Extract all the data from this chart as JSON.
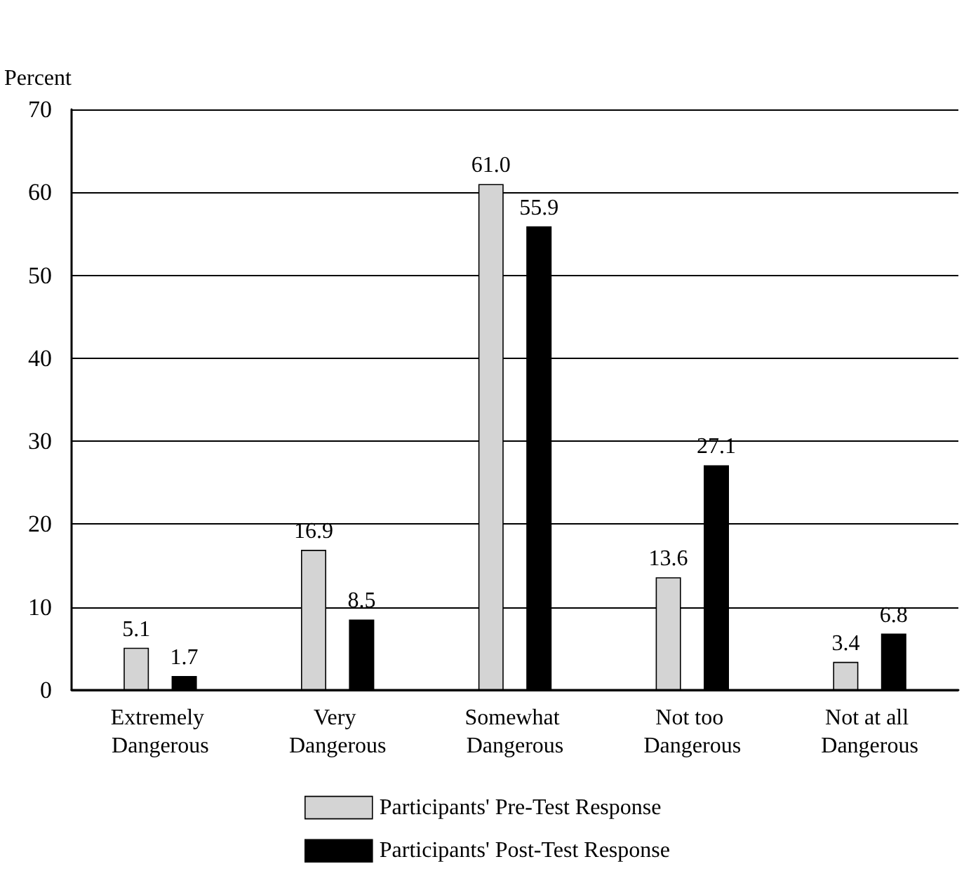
{
  "chart_data": {
    "type": "bar",
    "ylabel": "Percent",
    "categories": [
      "Extremely Dangerous",
      "Very Dangerous",
      "Somewhat Dangerous",
      "Not too Dangerous",
      "Not at all Dangerous"
    ],
    "series": [
      {
        "name": "Participants' Pre-Test Response",
        "color": "#d4d4d4",
        "values": [
          5.1,
          16.9,
          61.0,
          13.6,
          3.4
        ]
      },
      {
        "name": "Participants' Post-Test Response",
        "color": "#000000",
        "values": [
          1.7,
          8.5,
          55.9,
          27.1,
          6.8
        ]
      }
    ],
    "value_labels": [
      [
        "5.1",
        "16.9",
        "61.0",
        "13.6",
        "3.4"
      ],
      [
        "1.7",
        "8.5",
        "55.9",
        "27.1",
        "6.8"
      ]
    ],
    "ylim": [
      0,
      70
    ],
    "yticks": [
      0,
      10,
      20,
      30,
      40,
      50,
      60,
      70
    ],
    "grid": "y",
    "legend": "bottom"
  }
}
